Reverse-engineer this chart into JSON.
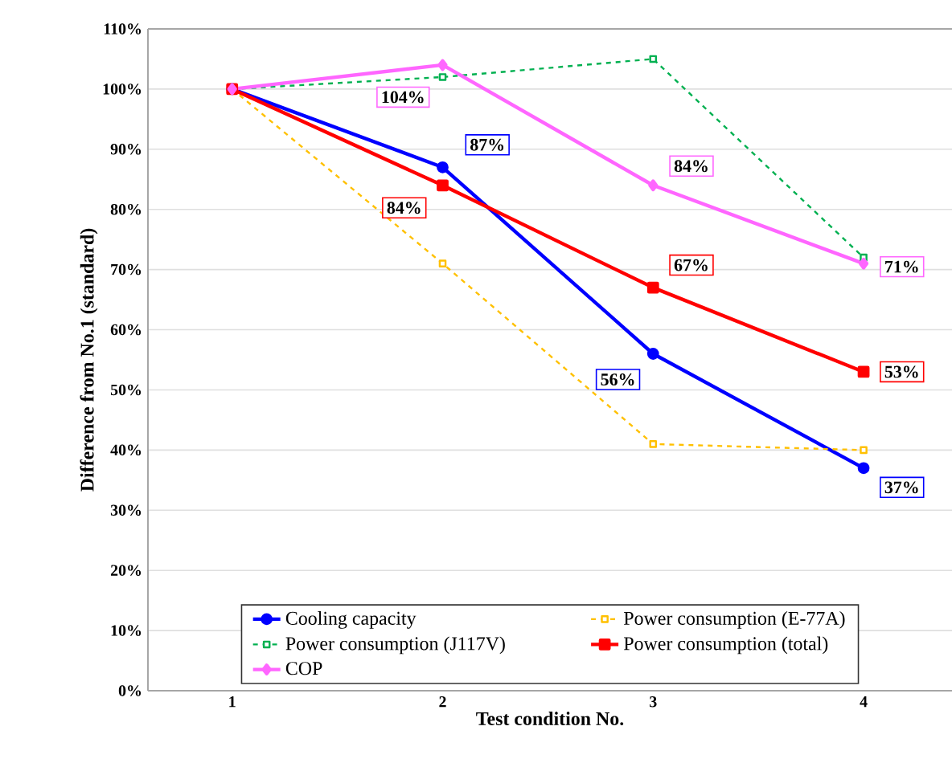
{
  "chart_data": {
    "type": "line",
    "xlabel": "Test condition No.",
    "ylabel": "Difference from No.1 (standard)",
    "categories": [
      "1",
      "2",
      "3",
      "4"
    ],
    "series": [
      {
        "name": "Cooling capacity",
        "color": "#0000ff",
        "marker": "circle",
        "line_style": "solid",
        "values": [
          100,
          87,
          56,
          37
        ],
        "value_labels": [
          null,
          "87%",
          "56%",
          "37%"
        ]
      },
      {
        "name": "Power consumption (E-77A)",
        "color": "#ffc000",
        "marker": "square",
        "line_style": "dashed",
        "values": [
          100,
          71,
          41,
          40
        ]
      },
      {
        "name": "Power consumption (J117V)",
        "color": "#00b050",
        "marker": "square",
        "line_style": "dashed",
        "values": [
          100,
          102,
          105,
          72
        ]
      },
      {
        "name": "Power consumption (total)",
        "color": "#ff0000",
        "marker": "square",
        "line_style": "solid",
        "values": [
          100,
          84,
          67,
          53
        ],
        "value_labels": [
          null,
          "84%",
          "67%",
          "53%"
        ]
      },
      {
        "name": "COP",
        "color": "#ff66ff",
        "marker": "diamond",
        "line_style": "solid",
        "values": [
          100,
          104,
          84,
          71
        ],
        "value_labels": [
          null,
          "104%",
          "84%",
          "71%"
        ]
      }
    ],
    "ylim": [
      0,
      110
    ],
    "yticks": [
      {
        "value": 0,
        "label": "0%"
      },
      {
        "value": 10,
        "label": "10%"
      },
      {
        "value": 20,
        "label": "20%"
      },
      {
        "value": 30,
        "label": "30%"
      },
      {
        "value": 40,
        "label": "40%"
      },
      {
        "value": 50,
        "label": "50%"
      },
      {
        "value": 60,
        "label": "60%"
      },
      {
        "value": 70,
        "label": "70%"
      },
      {
        "value": 80,
        "label": "80%"
      },
      {
        "value": 90,
        "label": "90%"
      },
      {
        "value": 100,
        "label": "100%"
      },
      {
        "value": 110,
        "label": "110%"
      }
    ],
    "grid": "y",
    "legend": "bottom"
  }
}
